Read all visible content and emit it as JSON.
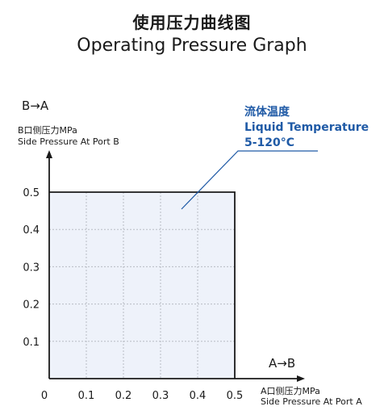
{
  "header": {
    "title_cn": "使用压力曲线图",
    "title_en": "Operating Pressure Graph"
  },
  "axes": {
    "y_direction": "B→A",
    "y_label_cn": "B口侧压力MPa",
    "y_label_en": "Side Pressure At Port B",
    "x_direction": "A→B",
    "x_label_cn": "A口侧压力MPa",
    "x_label_en": "Side Pressure At Port A"
  },
  "legend": {
    "line1": "流体温度",
    "line2": "Liquid Temperature",
    "line3": "5-120°C",
    "color": "#1f5aa6"
  },
  "colors": {
    "region_fill": "#eef2fa",
    "grid": "#b8bcc4",
    "axis": "#1a1a1a",
    "accent": "#1f5aa6"
  },
  "chart_data": {
    "type": "area",
    "title": "Operating Pressure Graph",
    "xlabel": "Side Pressure At Port A",
    "ylabel": "Side Pressure At Port B",
    "xlim": [
      0,
      0.5
    ],
    "ylim": [
      0,
      0.5
    ],
    "x_ticks": [
      "0",
      "0.1",
      "0.2",
      "0.3",
      "0.4",
      "0.5"
    ],
    "y_ticks": [
      "0.1",
      "0.2",
      "0.3",
      "0.4",
      "0.5"
    ],
    "grid": true,
    "region": {
      "x": [
        0,
        0.5
      ],
      "y": [
        0,
        0.5
      ]
    },
    "annotation": "Liquid Temperature 5-120°C"
  }
}
